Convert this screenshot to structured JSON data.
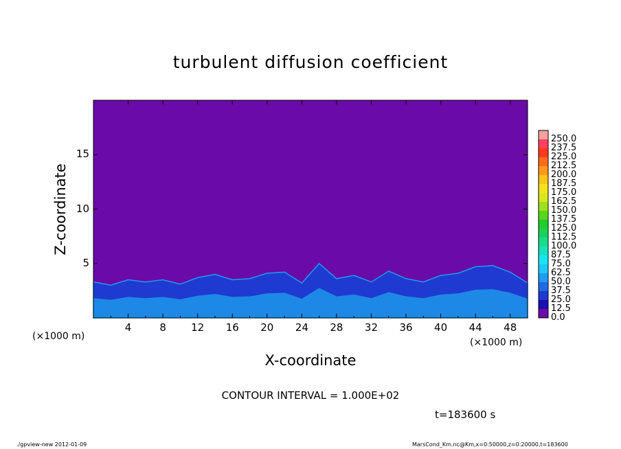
{
  "chart_data": {
    "type": "heatmap",
    "title": "turbulent diffusion coefficient",
    "xlabel": "X-coordinate",
    "ylabel": "Z-coordinate",
    "x_unit": "(×1000 m)",
    "y_unit": "(×1000 m)",
    "xlim": [
      0,
      50
    ],
    "ylim": [
      0,
      20
    ],
    "x_ticks": [
      "4",
      "8",
      "12",
      "16",
      "20",
      "24",
      "28",
      "32",
      "36",
      "40",
      "44",
      "48"
    ],
    "y_ticks": [
      "5",
      "10",
      "15"
    ],
    "background_value": 0.0,
    "colorbar": {
      "labels": [
        "0.0",
        "12.5",
        "25.0",
        "37.5",
        "50.0",
        "62.5",
        "75.0",
        "87.5",
        "100.0",
        "112.5",
        "125.0",
        "137.5",
        "150.0",
        "162.5",
        "175.0",
        "187.5",
        "200.0",
        "212.5",
        "225.0",
        "237.5",
        "250.0"
      ],
      "colors": [
        "#6a0aa8",
        "#1a10b4",
        "#1f3ad0",
        "#1f6ae0",
        "#1e9cf0",
        "#1ec8f8",
        "#19e6f0",
        "#18e0c0",
        "#18dc8c",
        "#1ad25a",
        "#22cf2c",
        "#58d61c",
        "#a0e01c",
        "#d8e81c",
        "#f5e21c",
        "#ffc41c",
        "#ff9a1c",
        "#ff6a1c",
        "#ff3a1c",
        "#ff4060",
        "#f6a0a0"
      ]
    },
    "boundary_layer_top_km": [
      {
        "x": 0,
        "z": 3.3
      },
      {
        "x": 2,
        "z": 3.0
      },
      {
        "x": 4,
        "z": 3.5
      },
      {
        "x": 6,
        "z": 3.3
      },
      {
        "x": 8,
        "z": 3.5
      },
      {
        "x": 10,
        "z": 3.1
      },
      {
        "x": 12,
        "z": 3.7
      },
      {
        "x": 14,
        "z": 4.0
      },
      {
        "x": 16,
        "z": 3.5
      },
      {
        "x": 18,
        "z": 3.6
      },
      {
        "x": 20,
        "z": 4.1
      },
      {
        "x": 22,
        "z": 4.2
      },
      {
        "x": 24,
        "z": 3.2
      },
      {
        "x": 26,
        "z": 5.0
      },
      {
        "x": 28,
        "z": 3.6
      },
      {
        "x": 30,
        "z": 3.9
      },
      {
        "x": 32,
        "z": 3.3
      },
      {
        "x": 34,
        "z": 4.3
      },
      {
        "x": 36,
        "z": 3.6
      },
      {
        "x": 38,
        "z": 3.3
      },
      {
        "x": 40,
        "z": 3.9
      },
      {
        "x": 42,
        "z": 4.1
      },
      {
        "x": 44,
        "z": 4.7
      },
      {
        "x": 46,
        "z": 4.8
      },
      {
        "x": 48,
        "z": 4.2
      },
      {
        "x": 50,
        "z": 3.2
      }
    ]
  },
  "contour_interval": "CONTOUR INTERVAL = 1.000E+02",
  "time_label": "t=183600 s",
  "footer_left": "./gpview-new  2012-01-09",
  "footer_right": "MarsCond_Km.nc@Km,x=0:50000,z=0:20000,t=183600"
}
